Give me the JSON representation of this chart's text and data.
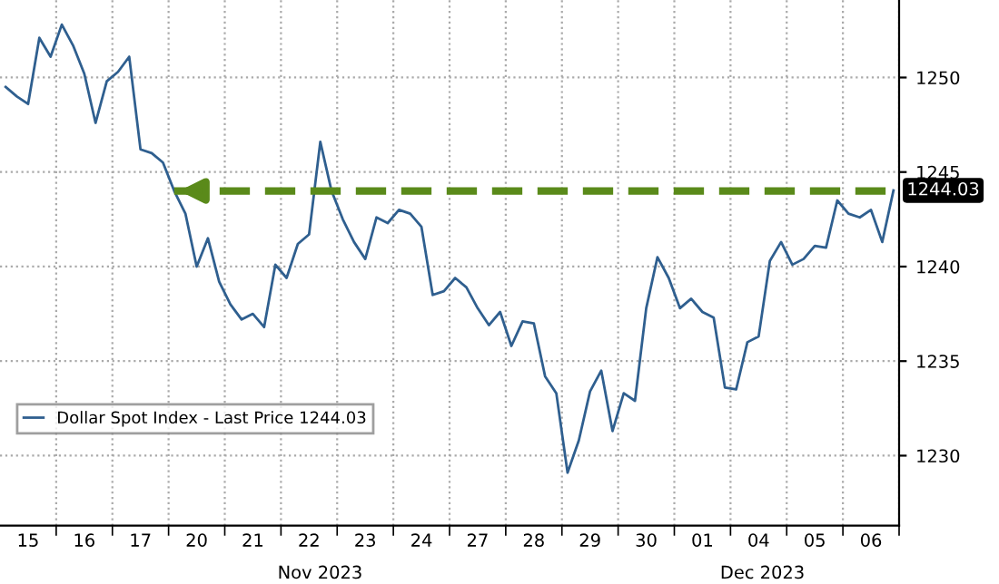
{
  "chart_data": {
    "type": "line",
    "categories": [
      null,
      null,
      "15",
      null,
      null,
      null,
      null,
      "16",
      null,
      null,
      null,
      null,
      "17",
      null,
      null,
      null,
      null,
      "20",
      null,
      null,
      null,
      null,
      "21",
      null,
      null,
      null,
      null,
      "22",
      null,
      null,
      null,
      null,
      "23",
      null,
      null,
      null,
      null,
      "24",
      null,
      null,
      null,
      null,
      "27",
      null,
      null,
      null,
      null,
      "28",
      null,
      null,
      null,
      null,
      "29",
      null,
      null,
      null,
      null,
      "30",
      null,
      null,
      null,
      null,
      "01",
      null,
      null,
      null,
      null,
      "04",
      null,
      null,
      null,
      null,
      "05",
      null,
      null,
      null,
      null,
      "06",
      null,
      null
    ],
    "series": [
      {
        "name": "Dollar Spot Index - Last Price 1244.03",
        "color": "#2f5f8f",
        "values": [
          1249.5,
          1249.0,
          1248.6,
          1252.1,
          1251.1,
          1252.8,
          1251.7,
          1250.2,
          1247.6,
          1249.8,
          1250.3,
          1251.1,
          1246.2,
          1246.0,
          1245.5,
          1244.0,
          1242.8,
          1240.0,
          1241.5,
          1239.2,
          1238.0,
          1237.2,
          1237.5,
          1236.8,
          1240.1,
          1239.4,
          1241.2,
          1241.7,
          1246.6,
          1244.0,
          1242.5,
          1241.3,
          1240.4,
          1242.6,
          1242.3,
          1243.0,
          1242.8,
          1242.1,
          1238.5,
          1238.7,
          1239.4,
          1238.9,
          1237.8,
          1236.9,
          1237.6,
          1235.8,
          1237.1,
          1237.0,
          1234.2,
          1233.3,
          1229.1,
          1230.8,
          1233.4,
          1234.5,
          1231.3,
          1233.3,
          1232.9,
          1237.8,
          1240.5,
          1239.4,
          1237.8,
          1238.3,
          1237.6,
          1237.3,
          1233.6,
          1233.5,
          1236.0,
          1236.3,
          1240.3,
          1241.3,
          1240.1,
          1240.4,
          1241.1,
          1241.0,
          1243.5,
          1242.8,
          1242.6,
          1243.0,
          1241.3,
          1244.03
        ],
        "value_labels": [
          null,
          null,
          null,
          null,
          null,
          null,
          null,
          null,
          null,
          null,
          null,
          null,
          null,
          null,
          null,
          null,
          null,
          null,
          null,
          null,
          null,
          null,
          null,
          null,
          null,
          null,
          null,
          null,
          null,
          null,
          null,
          null,
          null,
          null,
          null,
          null,
          null,
          null,
          null,
          null,
          null,
          null,
          null,
          null,
          null,
          null,
          null,
          null,
          null,
          null,
          null,
          null,
          null,
          null,
          null,
          null,
          null,
          null,
          null,
          null,
          null,
          null,
          null,
          null,
          null,
          null,
          null,
          null,
          null,
          null,
          null,
          null,
          null,
          null,
          null,
          null,
          null,
          null,
          null,
          "1244.03"
        ]
      },
      {
        "type": "line",
        "color": "#5a8a1a",
        "line_style": "dashed",
        "values": [
          null,
          null,
          null,
          null,
          null,
          null,
          null,
          null,
          null,
          null,
          null,
          null,
          null,
          null,
          null,
          1244.0,
          1244.0,
          1244.0,
          1244.0,
          1244.0,
          1244.0,
          1244.0,
          1244.0,
          1244.0,
          1244.0,
          1244.0,
          1244.0,
          1244.0,
          1244.0,
          1244.0,
          1244.0,
          1244.0,
          1244.0,
          1244.0,
          1244.0,
          1244.0,
          1244.0,
          1244.0,
          1244.0,
          1244.0,
          1244.0,
          1244.0,
          1244.0,
          1244.0,
          1244.0,
          1244.0,
          1244.0,
          1244.0,
          1244.0,
          1244.0,
          1244.0,
          1244.0,
          1244.0,
          1244.0,
          1244.0,
          1244.0,
          1244.0,
          1244.0,
          1244.0,
          1244.0,
          1244.0,
          1244.0,
          1244.0,
          1244.0,
          1244.0,
          1244.0,
          1244.0,
          1244.0,
          1244.0,
          1244.0,
          1244.0,
          1244.0,
          1244.0,
          1244.0,
          1244.0,
          1244.0,
          1244.0,
          1244.0,
          1244.0,
          1244.0
        ]
      }
    ],
    "ylim": [
      1226.3,
      1254.1
    ],
    "yticks": [
      1230,
      1235,
      1240,
      1245,
      1250
    ],
    "annotations": [
      "Nov 2023",
      "Dec 2023"
    ],
    "grid": true,
    "legend": "bottom left"
  }
}
